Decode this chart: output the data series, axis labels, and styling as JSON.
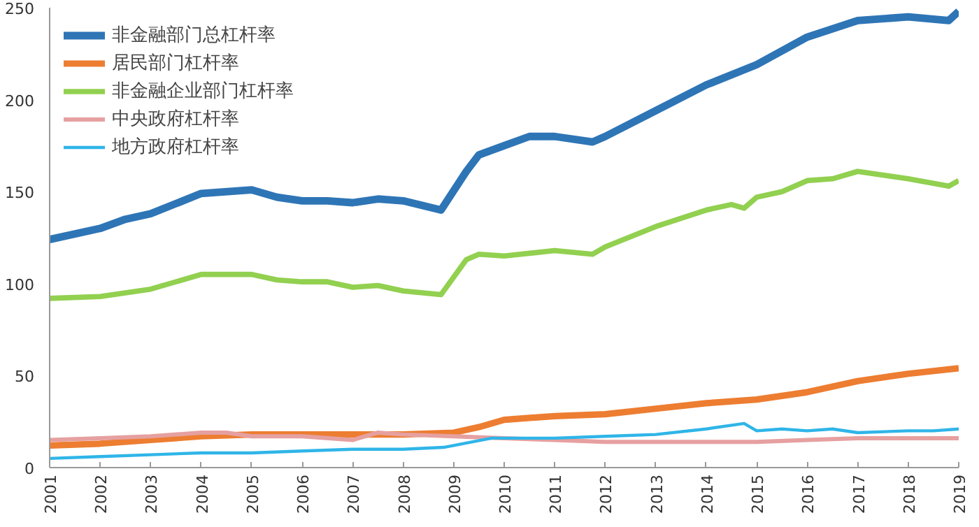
{
  "chart_data": {
    "type": "line",
    "xlim": [
      2001,
      2019
    ],
    "xticks": [
      2001,
      2002,
      2003,
      2004,
      2005,
      2006,
      2007,
      2008,
      2009,
      2010,
      2011,
      2012,
      2013,
      2014,
      2015,
      2016,
      2017,
      2018,
      2019
    ],
    "ylim": [
      0,
      250
    ],
    "yticks": [
      0,
      50,
      100,
      150,
      200,
      250
    ],
    "grid": false,
    "legend": "top left",
    "series": [
      {
        "name": "非金融部门总杠杆率",
        "color": "#2e75b6",
        "x": [
          2001,
          2002,
          2002.5,
          2003,
          2004,
          2005,
          2005.5,
          2006,
          2006.5,
          2007,
          2007.5,
          2008,
          2008.75,
          2009.25,
          2009.5,
          2010,
          2010.5,
          2011,
          2011.75,
          2012,
          2013,
          2014,
          2015,
          2016,
          2017,
          2018,
          2018.8,
          2019
        ],
        "values": [
          124,
          130,
          135,
          138,
          149,
          151,
          147,
          145,
          145,
          144,
          146,
          145,
          140,
          161,
          170,
          175,
          180,
          180,
          177,
          180,
          194,
          208,
          219,
          234,
          243,
          245,
          243,
          248
        ]
      },
      {
        "name": "居民部门杠杆率",
        "color": "#ed7d31",
        "x": [
          2001,
          2002,
          2003,
          2004,
          2005,
          2006,
          2007,
          2008,
          2009,
          2009.5,
          2010,
          2011,
          2012,
          2013,
          2014,
          2015,
          2016,
          2017,
          2018,
          2019
        ],
        "values": [
          12,
          13,
          15,
          17,
          18,
          18,
          18,
          18,
          19,
          22,
          26,
          28,
          29,
          32,
          35,
          37,
          41,
          47,
          51,
          54
        ]
      },
      {
        "name": "非金融企业部门杠杆率",
        "color": "#92d050",
        "x": [
          2001,
          2002,
          2003,
          2004,
          2005,
          2005.5,
          2006,
          2006.5,
          2007,
          2007.5,
          2008,
          2008.75,
          2009.25,
          2009.5,
          2010,
          2011,
          2011.75,
          2012,
          2013,
          2014,
          2014.5,
          2014.75,
          2015,
          2015.5,
          2016,
          2016.5,
          2017,
          2017.5,
          2018,
          2018.8,
          2019
        ],
        "values": [
          92,
          93,
          97,
          105,
          105,
          102,
          101,
          101,
          98,
          99,
          96,
          94,
          113,
          116,
          115,
          118,
          116,
          120,
          131,
          140,
          143,
          141,
          147,
          150,
          156,
          157,
          161,
          159,
          157,
          153,
          156
        ]
      },
      {
        "name": "中央政府杠杆率",
        "color": "#e6a0a0",
        "x": [
          2001,
          2002,
          2003,
          2004,
          2004.5,
          2005,
          2006,
          2007,
          2007.5,
          2008,
          2009,
          2010,
          2011,
          2012,
          2013,
          2014,
          2015,
          2016,
          2017,
          2018,
          2019
        ],
        "values": [
          15,
          16,
          17,
          19,
          19,
          17,
          17,
          15,
          19,
          18,
          17,
          16,
          15,
          14,
          14,
          14,
          14,
          15,
          16,
          16,
          16
        ]
      },
      {
        "name": "地方政府杠杆率",
        "color": "#2fb5e8",
        "x": [
          2001,
          2002,
          2003,
          2004,
          2005,
          2006,
          2007,
          2008,
          2008.8,
          2009,
          2009.75,
          2010,
          2011,
          2012,
          2013,
          2014,
          2014.75,
          2015,
          2015.5,
          2016,
          2016.5,
          2017,
          2018,
          2018.5,
          2019
        ],
        "values": [
          5,
          6,
          7,
          8,
          8,
          9,
          10,
          10,
          11,
          12,
          16,
          16,
          16,
          17,
          18,
          21,
          24,
          20,
          21,
          20,
          21,
          19,
          20,
          20,
          21
        ]
      }
    ]
  }
}
